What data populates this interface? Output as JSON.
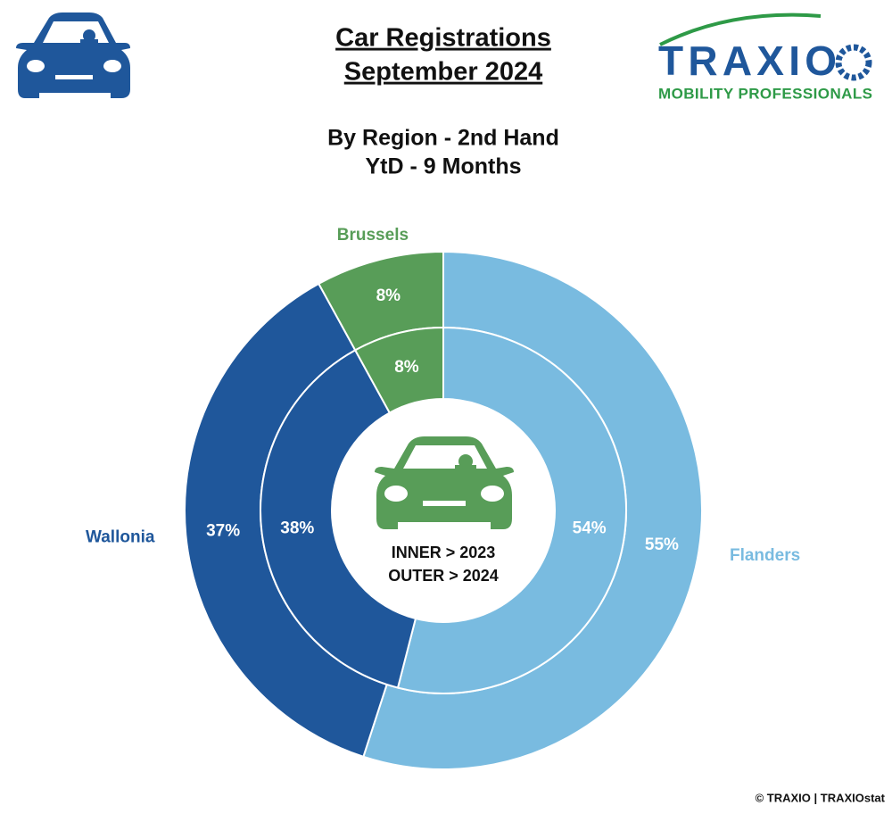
{
  "chart_data": {
    "type": "donut",
    "title": [
      "Car Registrations",
      "September 2024"
    ],
    "subtitle": [
      "By Region - 2nd Hand",
      "YtD - 9 Months"
    ],
    "logo": {
      "name": "TRAXIO",
      "tagline": "MOBILITY PROFESSIONALS"
    },
    "categories": [
      "Flanders",
      "Wallonia",
      "Brussels"
    ],
    "colors": [
      "#79bbe0",
      "#1f579b",
      "#589d58"
    ],
    "series": [
      {
        "values": [
          55,
          37,
          8
        ],
        "value_labels": [
          "55%",
          "37%",
          "8%"
        ]
      },
      {
        "values": [
          54,
          38,
          8
        ],
        "value_labels": [
          "54%",
          "38%",
          "8%"
        ]
      }
    ],
    "center_labels": [
      "INNER > 2023",
      "OUTER > 2024"
    ],
    "footer": "© TRAXIO | TRAXIOstat"
  }
}
